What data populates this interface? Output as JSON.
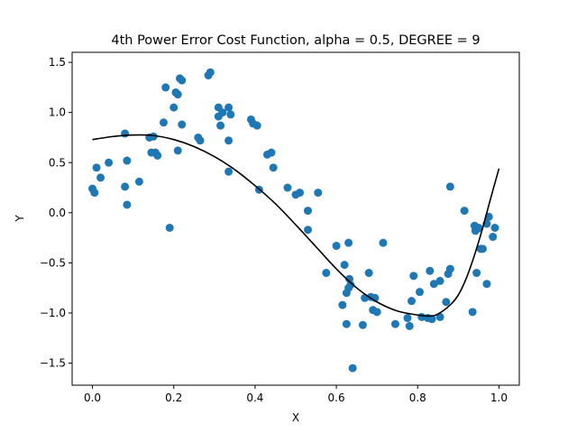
{
  "chart_data": {
    "type": "scatter",
    "title": "4th Power Error Cost Function, alpha = 0.5, DEGREE = 9",
    "xlabel": "X",
    "ylabel": "Y",
    "xlim": [
      -0.05,
      1.05
    ],
    "ylim": [
      -1.72,
      1.6
    ],
    "grid": false,
    "xticks": [
      {
        "value": 0.0,
        "label": "0.0"
      },
      {
        "value": 0.2,
        "label": "0.2"
      },
      {
        "value": 0.4,
        "label": "0.4"
      },
      {
        "value": 0.6,
        "label": "0.6"
      },
      {
        "value": 0.8,
        "label": "0.8"
      },
      {
        "value": 1.0,
        "label": "1.0"
      }
    ],
    "yticks": [
      {
        "value": 1.5,
        "label": "1.5"
      },
      {
        "value": 1.0,
        "label": "1.0"
      },
      {
        "value": 0.5,
        "label": "0.5"
      },
      {
        "value": 0.0,
        "label": "0.0"
      },
      {
        "value": -0.5,
        "label": "−0.5"
      },
      {
        "value": -1.0,
        "label": "−1.0"
      },
      {
        "value": -1.5,
        "label": "−1.5"
      }
    ],
    "scatter_color": "#1f77b4",
    "line_color": "#000000",
    "points": [
      [
        0.0,
        0.24
      ],
      [
        0.005,
        0.2
      ],
      [
        0.01,
        0.45
      ],
      [
        0.02,
        0.35
      ],
      [
        0.04,
        0.5
      ],
      [
        0.08,
        0.79
      ],
      [
        0.08,
        0.26
      ],
      [
        0.085,
        0.52
      ],
      [
        0.085,
        0.08
      ],
      [
        0.115,
        0.31
      ],
      [
        0.14,
        0.75
      ],
      [
        0.145,
        0.6
      ],
      [
        0.15,
        0.76
      ],
      [
        0.155,
        0.6
      ],
      [
        0.16,
        0.57
      ],
      [
        0.175,
        0.9
      ],
      [
        0.18,
        1.25
      ],
      [
        0.19,
        -0.15
      ],
      [
        0.2,
        1.05
      ],
      [
        0.205,
        1.2
      ],
      [
        0.21,
        1.18
      ],
      [
        0.21,
        0.62
      ],
      [
        0.215,
        1.34
      ],
      [
        0.22,
        1.32
      ],
      [
        0.22,
        0.88
      ],
      [
        0.26,
        0.75
      ],
      [
        0.265,
        0.72
      ],
      [
        0.285,
        1.37
      ],
      [
        0.29,
        1.4
      ],
      [
        0.31,
        0.96
      ],
      [
        0.31,
        1.05
      ],
      [
        0.315,
        0.87
      ],
      [
        0.32,
        1.0
      ],
      [
        0.335,
        1.05
      ],
      [
        0.335,
        0.72
      ],
      [
        0.34,
        0.98
      ],
      [
        0.335,
        0.41
      ],
      [
        0.39,
        0.93
      ],
      [
        0.395,
        0.89
      ],
      [
        0.405,
        0.87
      ],
      [
        0.41,
        0.23
      ],
      [
        0.43,
        0.58
      ],
      [
        0.44,
        0.6
      ],
      [
        0.445,
        0.45
      ],
      [
        0.48,
        0.25
      ],
      [
        0.5,
        0.18
      ],
      [
        0.51,
        0.2
      ],
      [
        0.53,
        0.02
      ],
      [
        0.53,
        -0.17
      ],
      [
        0.555,
        0.2
      ],
      [
        0.575,
        -0.6
      ],
      [
        0.6,
        -0.33
      ],
      [
        0.615,
        -0.92
      ],
      [
        0.62,
        -0.52
      ],
      [
        0.625,
        -1.11
      ],
      [
        0.625,
        -0.8
      ],
      [
        0.63,
        -0.3
      ],
      [
        0.63,
        -0.75
      ],
      [
        0.632,
        -0.66
      ],
      [
        0.635,
        -0.72
      ],
      [
        0.64,
        -1.55
      ],
      [
        0.665,
        -1.12
      ],
      [
        0.67,
        -0.85
      ],
      [
        0.68,
        -0.6
      ],
      [
        0.685,
        -0.84
      ],
      [
        0.69,
        -0.97
      ],
      [
        0.695,
        -0.85
      ],
      [
        0.7,
        -0.99
      ],
      [
        0.715,
        -0.3
      ],
      [
        0.745,
        -1.11
      ],
      [
        0.775,
        -1.05
      ],
      [
        0.78,
        -1.13
      ],
      [
        0.785,
        -0.88
      ],
      [
        0.79,
        -0.63
      ],
      [
        0.805,
        -0.79
      ],
      [
        0.81,
        -1.04
      ],
      [
        0.825,
        -1.05
      ],
      [
        0.83,
        -0.58
      ],
      [
        0.835,
        -1.06
      ],
      [
        0.84,
        -0.71
      ],
      [
        0.855,
        -0.68
      ],
      [
        0.855,
        -1.04
      ],
      [
        0.87,
        -0.89
      ],
      [
        0.875,
        -0.61
      ],
      [
        0.88,
        -0.56
      ],
      [
        0.88,
        0.26
      ],
      [
        0.915,
        0.02
      ],
      [
        0.935,
        -0.99
      ],
      [
        0.94,
        -0.13
      ],
      [
        0.942,
        -0.18
      ],
      [
        0.945,
        -0.6
      ],
      [
        0.948,
        -0.16
      ],
      [
        0.95,
        -0.15
      ],
      [
        0.955,
        -0.36
      ],
      [
        0.96,
        -0.36
      ],
      [
        0.97,
        -0.11
      ],
      [
        0.97,
        -0.71
      ],
      [
        0.975,
        -0.04
      ],
      [
        0.985,
        -0.24
      ],
      [
        0.99,
        -0.15
      ]
    ],
    "fit_curve": [
      [
        0.0,
        0.73
      ],
      [
        0.05,
        0.76
      ],
      [
        0.1,
        0.775
      ],
      [
        0.15,
        0.77
      ],
      [
        0.2,
        0.73
      ],
      [
        0.25,
        0.66
      ],
      [
        0.3,
        0.56
      ],
      [
        0.35,
        0.43
      ],
      [
        0.4,
        0.27
      ],
      [
        0.45,
        0.09
      ],
      [
        0.5,
        -0.12
      ],
      [
        0.55,
        -0.34
      ],
      [
        0.6,
        -0.56
      ],
      [
        0.65,
        -0.75
      ],
      [
        0.7,
        -0.89
      ],
      [
        0.75,
        -0.98
      ],
      [
        0.8,
        -1.02
      ],
      [
        0.83,
        -1.03
      ],
      [
        0.85,
        -1.01
      ],
      [
        0.88,
        -0.92
      ],
      [
        0.9,
        -0.82
      ],
      [
        0.92,
        -0.65
      ],
      [
        0.94,
        -0.42
      ],
      [
        0.96,
        -0.15
      ],
      [
        0.98,
        0.15
      ],
      [
        1.0,
        0.44
      ]
    ]
  }
}
